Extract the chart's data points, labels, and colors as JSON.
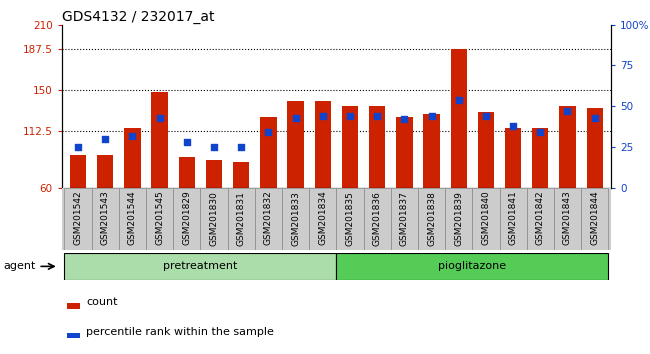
{
  "title": "GDS4132 / 232017_at",
  "categories": [
    "GSM201542",
    "GSM201543",
    "GSM201544",
    "GSM201545",
    "GSM201829",
    "GSM201830",
    "GSM201831",
    "GSM201832",
    "GSM201833",
    "GSM201834",
    "GSM201835",
    "GSM201836",
    "GSM201837",
    "GSM201838",
    "GSM201839",
    "GSM201840",
    "GSM201841",
    "GSM201842",
    "GSM201843",
    "GSM201844"
  ],
  "bar_values": [
    90,
    90,
    115,
    148,
    88,
    85,
    84,
    125,
    140,
    140,
    135,
    135,
    125,
    128,
    188,
    130,
    115,
    115,
    135,
    133
  ],
  "dot_pct": [
    25,
    30,
    32,
    43,
    28,
    25,
    25,
    34,
    43,
    44,
    44,
    44,
    42,
    44,
    54,
    44,
    38,
    34,
    47,
    43
  ],
  "bar_color": "#cc2200",
  "dot_color": "#1144cc",
  "ylim_left": [
    60,
    210
  ],
  "ylim_right": [
    0,
    100
  ],
  "yticks_left": [
    60,
    112.5,
    150,
    187.5,
    210
  ],
  "yticks_right": [
    0,
    25,
    50,
    75,
    100
  ],
  "pretreatment_count": 10,
  "pioglitazone_count": 10,
  "group_labels": [
    "pretreatment",
    "pioglitazone"
  ],
  "pretreat_color": "#aaddaa",
  "piogl_color": "#55cc55",
  "agent_label": "agent",
  "legend_count": "count",
  "legend_pct": "percentile rank within the sample",
  "background_color": "#ffffff",
  "xlabel_color": "#cc2200",
  "ylabel_right_color": "#1144cc",
  "dotted_grid_values": [
    112.5,
    150,
    187.5
  ],
  "title_fontsize": 10,
  "bar_width": 0.6,
  "tick_label_bg": "#cccccc"
}
